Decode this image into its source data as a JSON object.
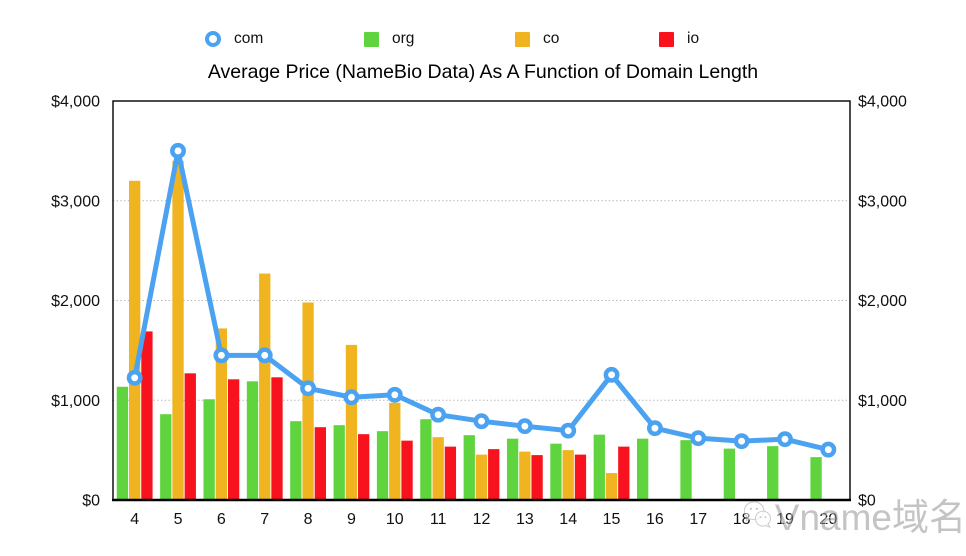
{
  "title": "Average Price (NameBio Data) As A Function of Domain Length",
  "legend": [
    {
      "label": "com",
      "swatch": "ring",
      "color": "#4BA2F1"
    },
    {
      "label": "org",
      "swatch": "square",
      "color": "#5FD43E"
    },
    {
      "label": "co",
      "swatch": "square",
      "color": "#EFB41F"
    },
    {
      "label": "io",
      "swatch": "square",
      "color": "#F7121D"
    }
  ],
  "chart_data": {
    "type": "bar",
    "title": "Average Price (NameBio Data) As A Function of Domain Length",
    "xlabel": "",
    "ylabel": "",
    "categories": [
      4,
      5,
      6,
      7,
      8,
      9,
      10,
      11,
      12,
      13,
      14,
      15,
      16,
      17,
      18,
      19,
      20
    ],
    "series": [
      {
        "name": "com",
        "type": "line",
        "color": "#4BA2F1",
        "values": [
          1225,
          3500,
          1450,
          1450,
          1120,
          1030,
          1055,
          855,
          790,
          740,
          695,
          1255,
          720,
          620,
          590,
          610,
          505
        ]
      },
      {
        "name": "org",
        "type": "bar",
        "color": "#5FD43E",
        "values": [
          1135,
          860,
          1010,
          1190,
          790,
          750,
          690,
          810,
          650,
          615,
          565,
          655,
          615,
          600,
          515,
          540,
          430
        ]
      },
      {
        "name": "co",
        "type": "bar",
        "color": "#EFB41F",
        "values": [
          3200,
          3400,
          1720,
          2270,
          1980,
          1555,
          975,
          630,
          455,
          485,
          500,
          270,
          null,
          null,
          null,
          null,
          null
        ]
      },
      {
        "name": "io",
        "type": "bar",
        "color": "#F7121D",
        "values": [
          1690,
          1270,
          1210,
          1230,
          730,
          660,
          595,
          535,
          510,
          450,
          455,
          535,
          null,
          null,
          null,
          null,
          null
        ]
      }
    ],
    "ylim": [
      0,
      4000
    ],
    "yticks": [
      0,
      1000,
      2000,
      3000,
      4000
    ],
    "ytick_labels": [
      "$0",
      "$1,000",
      "$2,000",
      "$3,000",
      "$4,000"
    ],
    "grid": "horizontal-dotted",
    "legend_position": "top",
    "dual_axis_labels": true
  },
  "watermark": {
    "icon": "wechat-icon",
    "text": "Vname域名"
  }
}
